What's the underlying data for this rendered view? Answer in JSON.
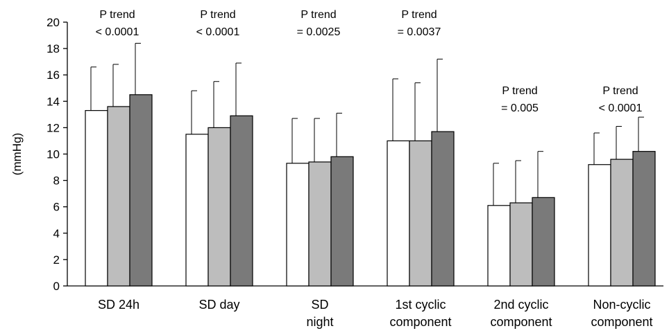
{
  "chart_data": {
    "type": "bar",
    "ylabel": "(mmHg)",
    "ylim": [
      0,
      20
    ],
    "yticks": [
      0,
      2,
      4,
      6,
      8,
      10,
      12,
      14,
      16,
      18,
      20
    ],
    "yticks_text": [
      "0",
      "2",
      "4",
      "6",
      "8",
      "10",
      "12",
      "14",
      "16",
      "18",
      "20"
    ],
    "categories": [
      [
        "SD 24h"
      ],
      [
        "SD day"
      ],
      [
        "SD",
        "night"
      ],
      [
        "1st cyclic",
        "component"
      ],
      [
        "2nd cyclic",
        "component"
      ],
      [
        "Non-cyclic",
        "component"
      ]
    ],
    "series": [
      {
        "values": [
          13.3,
          11.5,
          9.3,
          11.0,
          6.1,
          9.2
        ],
        "errors": [
          3.3,
          3.3,
          3.4,
          4.7,
          3.2,
          2.4
        ]
      },
      {
        "values": [
          13.6,
          12.0,
          9.4,
          11.0,
          6.3,
          9.6
        ],
        "errors": [
          3.2,
          3.5,
          3.3,
          4.4,
          3.2,
          2.5
        ]
      },
      {
        "values": [
          14.5,
          12.9,
          9.8,
          11.7,
          6.7,
          10.2
        ],
        "errors": [
          3.9,
          4.0,
          3.3,
          5.5,
          3.5,
          2.6
        ]
      }
    ],
    "annotations": [
      [
        "P trend",
        "< 0.0001"
      ],
      [
        "P trend",
        "< 0.0001"
      ],
      [
        "P trend",
        "= 0.0025"
      ],
      [
        "P trend",
        "= 0.0037"
      ],
      [
        "P trend",
        "= 0.005"
      ],
      [
        "P trend",
        "< 0.0001"
      ]
    ],
    "colors": {
      "series": [
        "#ffffff",
        "#bdbdbd",
        "#7a7a7a"
      ],
      "stroke": "#000000"
    },
    "legend": "none",
    "grid": false
  }
}
